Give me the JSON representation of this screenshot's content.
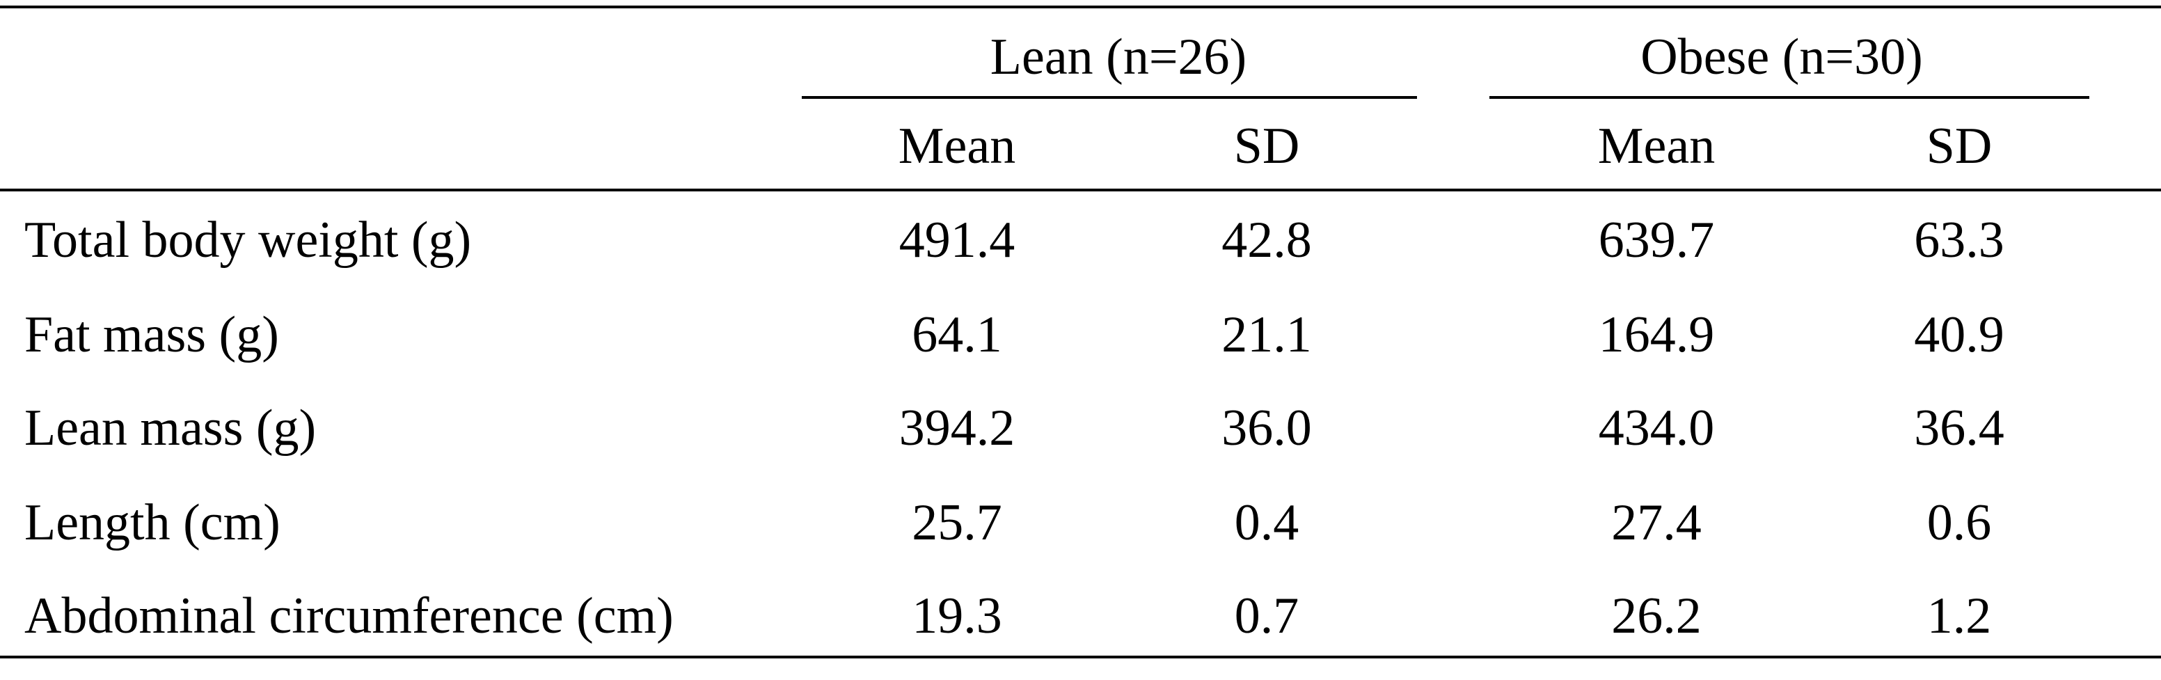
{
  "table": {
    "groups": [
      {
        "label": "Lean (n=26)"
      },
      {
        "label": "Obese  (n=30)"
      }
    ],
    "subheaders": [
      "Mean",
      "SD",
      "Mean",
      "SD"
    ],
    "rows": [
      {
        "label": "Total body weight (g)",
        "values": [
          "491.4",
          "42.8",
          "639.7",
          "63.3"
        ]
      },
      {
        "label": "Fat mass (g)",
        "values": [
          "64.1",
          "21.1",
          "164.9",
          "40.9"
        ]
      },
      {
        "label": "Lean mass (g)",
        "values": [
          "394.2",
          "36.0",
          "434.0",
          "36.4"
        ]
      },
      {
        "label": "Length (cm)",
        "values": [
          "25.7",
          "0.4",
          "27.4",
          "0.6"
        ]
      },
      {
        "label": "Abdominal circumference (cm)",
        "values": [
          "19.3",
          "0.7",
          "26.2",
          "1.2"
        ]
      }
    ]
  }
}
